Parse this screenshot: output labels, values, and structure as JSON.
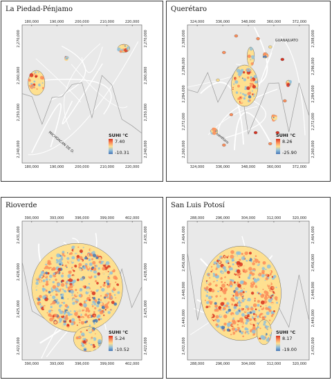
{
  "panels": [
    {
      "title": "La Piedad-Pénjamo",
      "x_ticks": [
        "180,000",
        "190,000",
        "200,000",
        "210,000",
        "220,000"
      ],
      "y_ticks": [
        "2,270,000",
        "2,260,000",
        "2,250,000",
        "2,240,000"
      ],
      "legend": {
        "title": "SUHI °C",
        "max": "7.40",
        "min": "-10.31"
      },
      "road_label": "MICHOACAN DE O.",
      "road_label2": ""
    },
    {
      "title": "Querétaro",
      "x_ticks": [
        "324,000",
        "336,000",
        "348,000",
        "360,000",
        "372,000"
      ],
      "y_ticks": [
        "2,308,000",
        "2,296,000",
        "2,284,000",
        "2,272,000",
        "2,260,000"
      ],
      "legend": {
        "title": "SUHI °C",
        "max": "8.26",
        "min": "-25.90"
      },
      "road_label": "Querétaro",
      "road_label2": "GUANAJUATO"
    },
    {
      "title": "Rioverde",
      "x_ticks": [
        "390,000",
        "393,000",
        "396,000",
        "399,000",
        "402,000"
      ],
      "y_ticks": [
        "2,431,000",
        "2,428,000",
        "2,425,000",
        "2,422,000"
      ],
      "legend": {
        "title": "SUHI °C",
        "max": "5.24",
        "min": "-10.52"
      },
      "road_label": "",
      "road_label2": ""
    },
    {
      "title": "San Luis Potosí",
      "x_ticks": [
        "288,000",
        "296,000",
        "304,000",
        "312,000",
        "320,000"
      ],
      "y_ticks": [
        "2,464,000",
        "2,456,000",
        "2,448,000",
        "2,440,000",
        "2,432,000"
      ],
      "legend": {
        "title": "SUHI °C",
        "max": "8.17",
        "min": "-19.00"
      },
      "road_label": "",
      "road_label2": ""
    }
  ],
  "colors": {
    "hot": "#d7301f",
    "warm": "#fc8d59",
    "mid": "#fee090",
    "cool": "#91bfdb",
    "cold": "#4575b4",
    "background": "#e9e9e9",
    "road": "#ffffff",
    "boundary": "#999999"
  }
}
